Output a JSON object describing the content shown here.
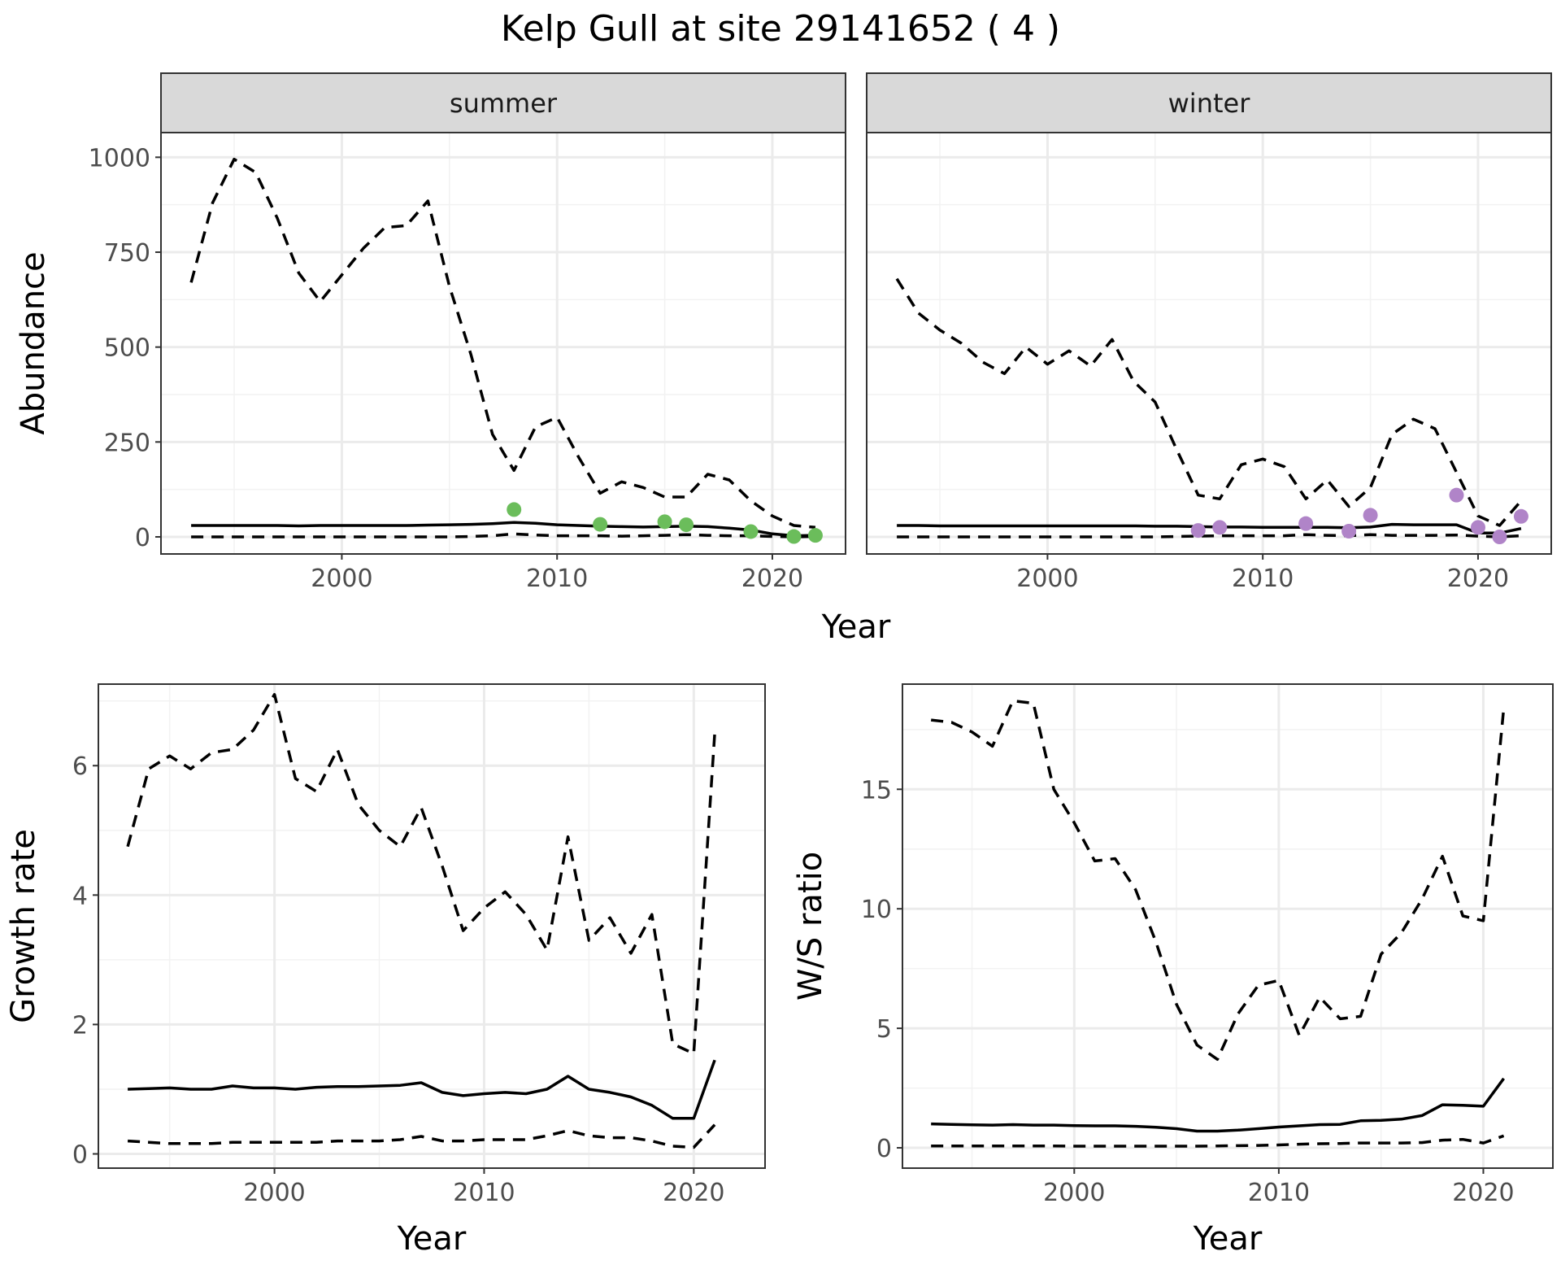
{
  "title": "Kelp Gull at site 29141652 ( 4 )",
  "colors": {
    "summer_points": "#6bbd5b",
    "winter_points": "#b084c8"
  },
  "chart_data": [
    {
      "id": "abundance",
      "type": "line",
      "ylabel": "Abundance",
      "xlabel": "Year",
      "xlim": [
        1991.6,
        2023.4
      ],
      "ylim": [
        -45,
        1065
      ],
      "xticks": [
        2000,
        2010,
        2020
      ],
      "yticks": [
        0,
        250,
        500,
        750,
        1000
      ],
      "facets": [
        {
          "strip": "summer",
          "points_color": "#6bbd5b",
          "series": [
            {
              "style": "solid",
              "x": [
                1993,
                1994,
                1995,
                1996,
                1997,
                1998,
                1999,
                2000,
                2001,
                2002,
                2003,
                2004,
                2005,
                2006,
                2007,
                2008,
                2009,
                2010,
                2011,
                2012,
                2013,
                2014,
                2015,
                2016,
                2017,
                2018,
                2019,
                2020,
                2021,
                2022
              ],
              "y": [
                30,
                30,
                30,
                30,
                30,
                29,
                30,
                30,
                30,
                30,
                30,
                31,
                32,
                33,
                35,
                38,
                36,
                32,
                30,
                28,
                27,
                26,
                27,
                28,
                27,
                23,
                18,
                8,
                3,
                4
              ]
            },
            {
              "style": "dashed",
              "x": [
                1993,
                1994,
                1995,
                1996,
                1997,
                1998,
                1999,
                2000,
                2001,
                2002,
                2003,
                2004,
                2005,
                2006,
                2007,
                2008,
                2009,
                2010,
                2011,
                2012,
                2013,
                2014,
                2015,
                2016,
                2017,
                2018,
                2019,
                2020,
                2021,
                2022
              ],
              "y": [
                670,
                880,
                995,
                960,
                840,
                695,
                620,
                690,
                760,
                815,
                820,
                885,
                660,
                480,
                270,
                175,
                290,
                315,
                210,
                115,
                145,
                130,
                105,
                105,
                165,
                150,
                95,
                55,
                30,
                25
              ]
            },
            {
              "style": "dashed",
              "x": [
                1993,
                1994,
                1995,
                1996,
                1997,
                1998,
                1999,
                2000,
                2001,
                2002,
                2003,
                2004,
                2005,
                2006,
                2007,
                2008,
                2009,
                2010,
                2011,
                2012,
                2013,
                2014,
                2015,
                2016,
                2017,
                2018,
                2019,
                2020,
                2021,
                2022
              ],
              "y": [
                0,
                0,
                0,
                0,
                0,
                0,
                0,
                0,
                0,
                0,
                0,
                0,
                0,
                1,
                3,
                8,
                5,
                3,
                3,
                3,
                2,
                3,
                4,
                6,
                4,
                3,
                3,
                1,
                0,
                1
              ]
            }
          ],
          "points": {
            "x": [
              2008,
              2012,
              2015,
              2016,
              2019,
              2021,
              2022
            ],
            "y": [
              72,
              33,
              40,
              32,
              14,
              1,
              4
            ]
          }
        },
        {
          "strip": "winter",
          "points_color": "#b084c8",
          "series": [
            {
              "style": "solid",
              "x": [
                1993,
                1994,
                1995,
                1996,
                1997,
                1998,
                1999,
                2000,
                2001,
                2002,
                2003,
                2004,
                2005,
                2006,
                2007,
                2008,
                2009,
                2010,
                2011,
                2012,
                2013,
                2014,
                2015,
                2016,
                2017,
                2018,
                2019,
                2020,
                2021,
                2022
              ],
              "y": [
                30,
                30,
                29,
                29,
                29,
                29,
                29,
                29,
                29,
                29,
                29,
                29,
                28,
                28,
                27,
                26,
                26,
                25,
                25,
                25,
                25,
                24,
                26,
                33,
                32,
                32,
                32,
                10,
                10,
                22
              ]
            },
            {
              "style": "dashed",
              "x": [
                1993,
                1994,
                1995,
                1996,
                1997,
                1998,
                1999,
                2000,
                2001,
                2002,
                2003,
                2004,
                2005,
                2006,
                2007,
                2008,
                2009,
                2010,
                2011,
                2012,
                2013,
                2014,
                2015,
                2016,
                2017,
                2018,
                2019,
                2020,
                2021,
                2022
              ],
              "y": [
                680,
                590,
                545,
                510,
                460,
                430,
                500,
                455,
                490,
                450,
                520,
                410,
                355,
                230,
                110,
                100,
                190,
                205,
                185,
                100,
                150,
                80,
                130,
                270,
                310,
                285,
                170,
                55,
                30,
                95
              ]
            },
            {
              "style": "dashed",
              "x": [
                1993,
                1994,
                1995,
                1996,
                1997,
                1998,
                1999,
                2000,
                2001,
                2002,
                2003,
                2004,
                2005,
                2006,
                2007,
                2008,
                2009,
                2010,
                2011,
                2012,
                2013,
                2014,
                2015,
                2016,
                2017,
                2018,
                2019,
                2020,
                2021,
                2022
              ],
              "y": [
                0,
                0,
                0,
                0,
                0,
                0,
                0,
                0,
                0,
                0,
                0,
                0,
                0,
                1,
                2,
                3,
                3,
                3,
                3,
                6,
                4,
                3,
                6,
                4,
                4,
                4,
                5,
                2,
                0,
                3
              ]
            }
          ],
          "points": {
            "x": [
              2007,
              2008,
              2012,
              2014,
              2015,
              2019,
              2020,
              2021,
              2022
            ],
            "y": [
              17,
              25,
              35,
              15,
              57,
              110,
              25,
              0,
              54
            ]
          }
        }
      ]
    },
    {
      "id": "growth",
      "type": "line",
      "ylabel": "Growth rate",
      "xlabel": "Year",
      "xlim": [
        1991.6,
        2023.4
      ],
      "ylim": [
        -0.22,
        7.26
      ],
      "xticks": [
        2000,
        2010,
        2020
      ],
      "yticks": [
        0,
        2,
        4,
        6
      ],
      "series": [
        {
          "style": "solid",
          "x": [
            1993,
            1994,
            1995,
            1996,
            1997,
            1998,
            1999,
            2000,
            2001,
            2002,
            2003,
            2004,
            2005,
            2006,
            2007,
            2008,
            2009,
            2010,
            2011,
            2012,
            2013,
            2014,
            2015,
            2016,
            2017,
            2018,
            2019,
            2020,
            2021
          ],
          "y": [
            1.0,
            1.01,
            1.02,
            1.0,
            1.0,
            1.05,
            1.02,
            1.02,
            1.0,
            1.03,
            1.04,
            1.04,
            1.05,
            1.06,
            1.1,
            0.95,
            0.9,
            0.93,
            0.95,
            0.93,
            1.0,
            1.2,
            1.0,
            0.95,
            0.88,
            0.75,
            0.55,
            0.55,
            1.45
          ]
        },
        {
          "style": "dashed",
          "x": [
            1993,
            1994,
            1995,
            1996,
            1997,
            1998,
            1999,
            2000,
            2001,
            2002,
            2003,
            2004,
            2005,
            2006,
            2007,
            2008,
            2009,
            2010,
            2011,
            2012,
            2013,
            2014,
            2015,
            2016,
            2017,
            2018,
            2019,
            2020,
            2021
          ],
          "y": [
            4.75,
            5.95,
            6.15,
            5.95,
            6.2,
            6.25,
            6.55,
            7.1,
            5.8,
            5.6,
            6.25,
            5.4,
            5.0,
            4.75,
            5.35,
            4.45,
            3.45,
            3.8,
            4.05,
            3.7,
            3.15,
            4.9,
            3.3,
            3.65,
            3.1,
            3.7,
            1.7,
            1.55,
            6.5
          ]
        },
        {
          "style": "dashed",
          "x": [
            1993,
            1994,
            1995,
            1996,
            1997,
            1998,
            1999,
            2000,
            2001,
            2002,
            2003,
            2004,
            2005,
            2006,
            2007,
            2008,
            2009,
            2010,
            2011,
            2012,
            2013,
            2014,
            2015,
            2016,
            2017,
            2018,
            2019,
            2020,
            2021
          ],
          "y": [
            0.2,
            0.18,
            0.16,
            0.16,
            0.16,
            0.18,
            0.18,
            0.18,
            0.18,
            0.18,
            0.2,
            0.2,
            0.2,
            0.22,
            0.27,
            0.2,
            0.2,
            0.22,
            0.22,
            0.22,
            0.28,
            0.36,
            0.28,
            0.25,
            0.25,
            0.2,
            0.12,
            0.1,
            0.45
          ]
        }
      ]
    },
    {
      "id": "ratio",
      "type": "line",
      "ylabel": "W/S ratio",
      "xlabel": "Year",
      "xlim": [
        1991.6,
        2023.4
      ],
      "ylim": [
        -0.85,
        19.4
      ],
      "xticks": [
        2000,
        2010,
        2020
      ],
      "yticks": [
        0,
        5,
        10,
        15
      ],
      "series": [
        {
          "style": "solid",
          "x": [
            1993,
            1994,
            1995,
            1996,
            1997,
            1998,
            1999,
            2000,
            2001,
            2002,
            2003,
            2004,
            2005,
            2006,
            2007,
            2008,
            2009,
            2010,
            2011,
            2012,
            2013,
            2014,
            2015,
            2016,
            2017,
            2018,
            2019,
            2020,
            2021
          ],
          "y": [
            1.0,
            0.98,
            0.96,
            0.95,
            0.97,
            0.95,
            0.95,
            0.93,
            0.92,
            0.92,
            0.9,
            0.86,
            0.8,
            0.7,
            0.7,
            0.74,
            0.8,
            0.87,
            0.92,
            0.97,
            0.98,
            1.13,
            1.15,
            1.2,
            1.35,
            1.8,
            1.78,
            1.74,
            2.9
          ]
        },
        {
          "style": "dashed",
          "x": [
            1993,
            1994,
            1995,
            1996,
            1997,
            1998,
            1999,
            2000,
            2001,
            2002,
            2003,
            2004,
            2005,
            2006,
            2007,
            2008,
            2009,
            2010,
            2011,
            2012,
            2013,
            2014,
            2015,
            2016,
            2017,
            2018,
            2019,
            2020,
            2021
          ],
          "y": [
            17.9,
            17.8,
            17.4,
            16.8,
            18.7,
            18.6,
            15.0,
            13.6,
            12.0,
            12.1,
            10.8,
            8.6,
            6.0,
            4.3,
            3.7,
            5.6,
            6.8,
            7.0,
            4.7,
            6.3,
            5.4,
            5.5,
            8.1,
            9.0,
            10.4,
            12.2,
            9.7,
            9.5,
            18.4
          ]
        },
        {
          "style": "dashed",
          "x": [
            1993,
            1994,
            1995,
            1996,
            1997,
            1998,
            1999,
            2000,
            2001,
            2002,
            2003,
            2004,
            2005,
            2006,
            2007,
            2008,
            2009,
            2010,
            2011,
            2012,
            2013,
            2014,
            2015,
            2016,
            2017,
            2018,
            2019,
            2020,
            2021
          ],
          "y": [
            0.08,
            0.08,
            0.08,
            0.08,
            0.08,
            0.08,
            0.08,
            0.07,
            0.07,
            0.07,
            0.07,
            0.07,
            0.07,
            0.07,
            0.08,
            0.09,
            0.1,
            0.12,
            0.15,
            0.17,
            0.18,
            0.2,
            0.2,
            0.2,
            0.22,
            0.32,
            0.35,
            0.2,
            0.5
          ]
        }
      ]
    }
  ]
}
